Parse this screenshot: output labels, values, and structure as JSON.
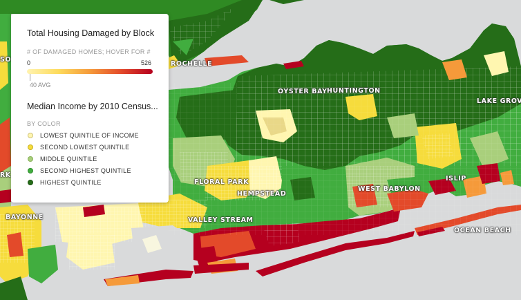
{
  "legend": {
    "damage_title": "Total Housing Damaged by Block",
    "damage_subtitle": "# OF DAMAGED HOMES; HOVER FOR #",
    "damage_min": "0",
    "damage_max": "526",
    "damage_avg": "40 AVG",
    "income_title": "Median Income by 2010 Census...",
    "income_subtitle": "BY COLOR",
    "income_items": [
      {
        "label": "LOWEST QUINTILE OF INCOME",
        "color": "#fff6b0",
        "border": "#cfc27a"
      },
      {
        "label": "SECOND LOWEST QUINTILE",
        "color": "#f6dc3c",
        "border": "#c8b020"
      },
      {
        "label": "MIDDLE QUINTILE",
        "color": "#a9cf7c",
        "border": "#86b058"
      },
      {
        "label": "SECOND HIGHEST QUINTILE",
        "color": "#41ad3f",
        "border": "#2e8c2c"
      },
      {
        "label": "HIGHEST QUINTILE",
        "color": "#256d18",
        "border": "#1b5211"
      }
    ]
  },
  "places": {
    "rochelle": "ROCHELLE",
    "oyster_bay": "OYSTER BAY",
    "huntington": "HUNTINGTON",
    "lake_grove": "LAKE GROVE",
    "floral_park": "FLORAL PARK",
    "hempstead": "HEMPSTEAD",
    "west_babylon": "WEST BABYLON",
    "islip": "ISLIP",
    "bayonne": "BAYONNE",
    "valley_stream": "VALLEY STREAM",
    "ocean_beach": "OCEAN BEACH",
    "so_partial": "SO",
    "rk_partial": "RK"
  },
  "colors": {
    "water": "#d9dadb",
    "damage_high": "#b5001f",
    "damage_mid": "#e34a2a",
    "damage_low": "#f59a3a"
  }
}
